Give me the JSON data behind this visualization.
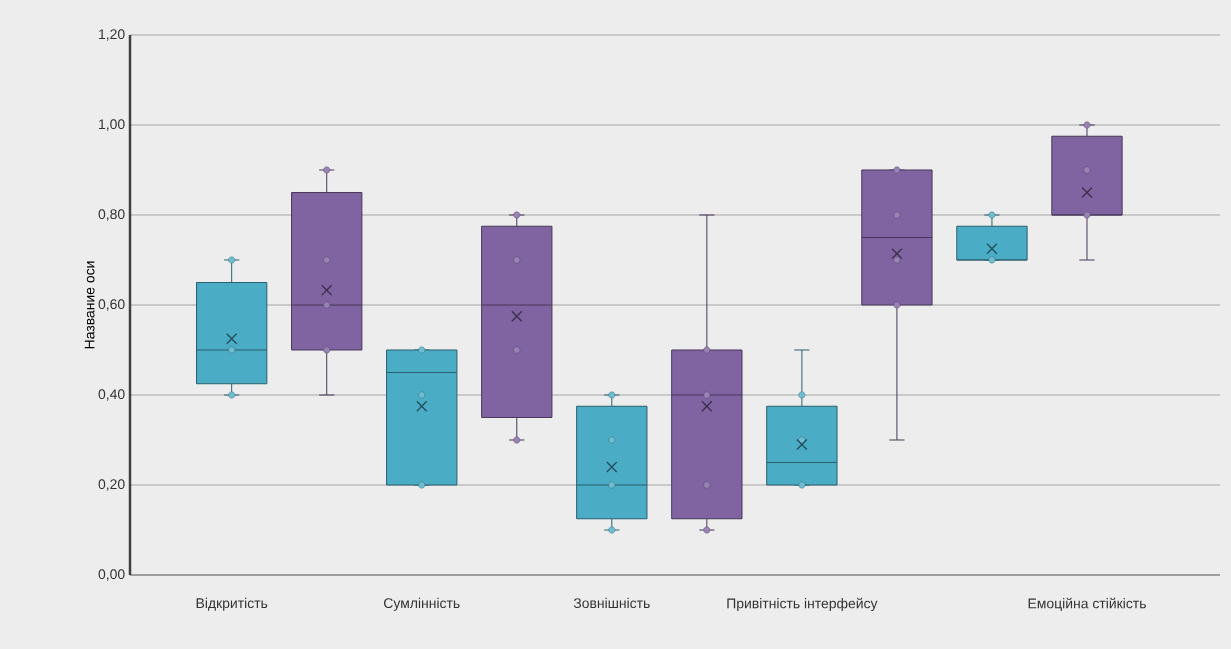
{
  "chart_data": {
    "type": "box",
    "ylabel": "Название оси",
    "categories": [
      "Відкритість",
      null,
      "Сумлінність",
      null,
      "Зовнішність",
      null,
      "Привітність інтерфейсу",
      null,
      null,
      "Емоційна стійкість"
    ],
    "colors": [
      "#4bacc6",
      "#8064a2",
      "#4bacc6",
      "#8064a2",
      "#4bacc6",
      "#8064a2",
      "#4bacc6",
      "#8064a2",
      "#4bacc6",
      "#8064a2"
    ],
    "boxes": [
      {
        "low": 0.4,
        "q1": 0.425,
        "median": 0.5,
        "q3": 0.65,
        "high": 0.7,
        "mean": 0.525,
        "outliers": [
          0.7,
          0.5,
          0.4
        ]
      },
      {
        "low": 0.4,
        "q1": 0.5,
        "median": 0.6,
        "q3": 0.85,
        "high": 0.9,
        "mean": 0.633,
        "outliers": [
          0.9,
          0.7,
          0.6,
          0.5
        ]
      },
      {
        "low": 0.2,
        "q1": 0.2,
        "median": 0.45,
        "q3": 0.5,
        "high": 0.5,
        "mean": 0.375,
        "outliers": [
          0.5,
          0.4,
          0.2
        ]
      },
      {
        "low": 0.3,
        "q1": 0.35,
        "median": 0.6,
        "q3": 0.775,
        "high": 0.8,
        "mean": 0.575,
        "outliers": [
          0.8,
          0.7,
          0.5,
          0.3
        ]
      },
      {
        "low": 0.1,
        "q1": 0.125,
        "median": 0.2,
        "q3": 0.375,
        "high": 0.4,
        "mean": 0.24,
        "outliers": [
          0.4,
          0.3,
          0.2,
          0.1
        ]
      },
      {
        "low": 0.1,
        "q1": 0.125,
        "median": 0.4,
        "q3": 0.5,
        "high": 0.8,
        "mean": 0.375,
        "outliers": [
          0.5,
          0.4,
          0.2,
          0.1
        ]
      },
      {
        "low": 0.2,
        "q1": 0.2,
        "median": 0.25,
        "q3": 0.375,
        "high": 0.5,
        "mean": 0.29,
        "outliers": [
          0.4,
          0.3,
          0.2
        ]
      },
      {
        "low": 0.3,
        "q1": 0.6,
        "median": 0.75,
        "q3": 0.9,
        "high": 0.9,
        "mean": 0.714,
        "outliers": [
          0.9,
          0.8,
          0.7,
          0.6
        ]
      },
      {
        "low": 0.7,
        "q1": 0.7,
        "median": 0.7,
        "q3": 0.775,
        "high": 0.8,
        "mean": 0.725,
        "outliers": [
          0.8,
          0.7
        ]
      },
      {
        "low": 0.7,
        "q1": 0.8,
        "median": 0.8,
        "q3": 0.975,
        "high": 1.0,
        "mean": 0.85,
        "outliers": [
          1.0,
          0.9,
          0.8
        ]
      }
    ],
    "ylim": [
      0,
      1.2
    ],
    "yticks": [
      {
        "value": 0,
        "label": "0,00"
      },
      {
        "value": 0.2,
        "label": "0,20"
      },
      {
        "value": 0.4,
        "label": "0,40"
      },
      {
        "value": 0.6,
        "label": "0,60"
      },
      {
        "value": 0.8,
        "label": "0,80"
      },
      {
        "value": 1.0,
        "label": "1,00"
      },
      {
        "value": 1.2,
        "label": "1,20"
      }
    ],
    "grid": "y",
    "marker": "circle"
  }
}
